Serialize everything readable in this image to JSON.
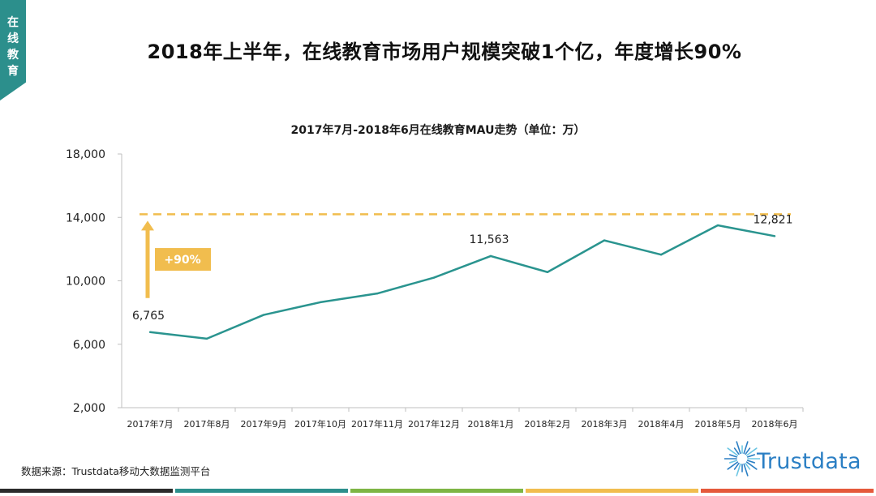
{
  "side_tag": {
    "text": "在线教育"
  },
  "title": "2018年上半年，在线教育市场用户规模突破1个亿，年度增长90%",
  "source_note": "数据来源：Trustdata移动大数据监测平台",
  "brand": {
    "name": "Trustdata"
  },
  "colors": {
    "teal": "#2c8f8c",
    "line": "#2a948f",
    "accent": "#f1bd4e",
    "axis": "#bfbfbf",
    "brand": "#2b7fc4",
    "footer": [
      "#2b2b2b",
      "#2c8f8c",
      "#7db544",
      "#f1bd4e",
      "#e5593b"
    ]
  },
  "chart_data": {
    "type": "line",
    "title": "2017年7月-2018年6月在线教育MAU走势（单位：万）",
    "xlabel": "",
    "ylabel": "",
    "ylim": [
      2000,
      18000
    ],
    "y_ticks": [
      2000,
      6000,
      10000,
      14000,
      18000
    ],
    "y_tick_labels": [
      "2,000",
      "6,000",
      "10,000",
      "14,000",
      "18,000"
    ],
    "categories": [
      "2017年7月",
      "2017年8月",
      "2017年9月",
      "2017年10月",
      "2017年11月",
      "2017年12月",
      "2018年1月",
      "2018年2月",
      "2018年3月",
      "2018年4月",
      "2018年5月",
      "2018年6月"
    ],
    "series": [
      {
        "name": "MAU",
        "values": [
          6765,
          6350,
          7850,
          8650,
          9200,
          10200,
          11563,
          10550,
          12550,
          11650,
          13500,
          12821
        ]
      }
    ],
    "data_labels": [
      {
        "index": 0,
        "text": "6,765"
      },
      {
        "index": 6,
        "text": "11,563"
      },
      {
        "index": 11,
        "text": "12,821"
      }
    ],
    "reference_line": {
      "value": 14200,
      "style": "dashed"
    },
    "annotation": {
      "text": "+90%",
      "from_value": 6765,
      "to_value": 14200
    },
    "grid": false
  }
}
